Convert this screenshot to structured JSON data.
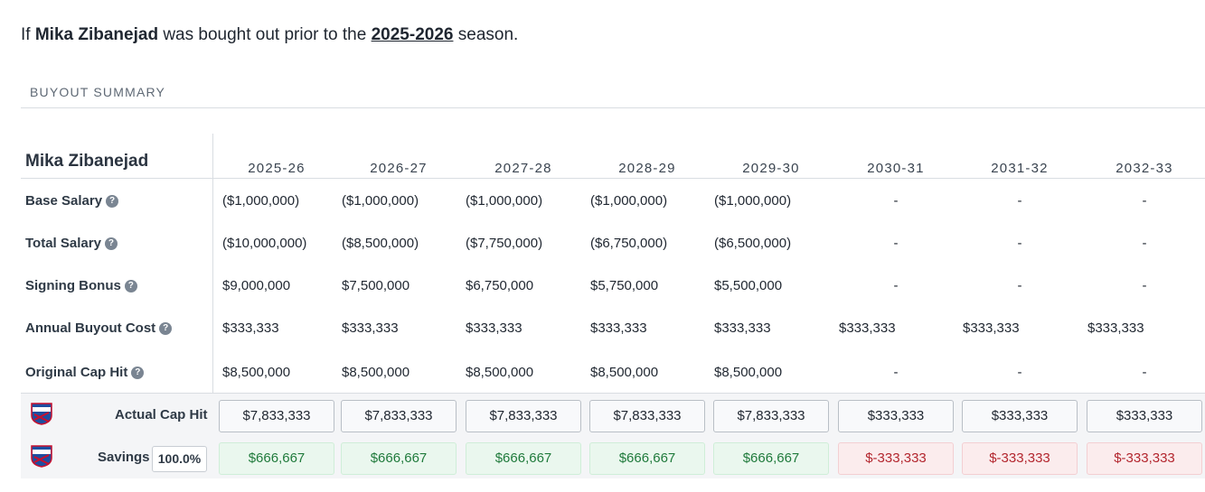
{
  "intro": {
    "prefix": "If",
    "player": "Mika Zibanejad",
    "middle": "was bought out prior to the",
    "season": "2025-2026",
    "suffix": "season."
  },
  "summary": {
    "title": "BUYOUT SUMMARY",
    "player_name": "Mika Zibanejad",
    "years": [
      "2025-26",
      "2026-27",
      "2027-28",
      "2028-29",
      "2029-30",
      "2030-31",
      "2031-32",
      "2032-33"
    ],
    "rows": [
      {
        "label": "Base Salary",
        "help_icon": "question-circle-icon",
        "values": [
          "($1,000,000)",
          "($1,000,000)",
          "($1,000,000)",
          "($1,000,000)",
          "($1,000,000)",
          "-",
          "-",
          "-"
        ]
      },
      {
        "label": "Total Salary",
        "help_icon": "question-circle-icon",
        "values": [
          "($10,000,000)",
          "($8,500,000)",
          "($7,750,000)",
          "($6,750,000)",
          "($6,500,000)",
          "-",
          "-",
          "-"
        ]
      },
      {
        "label": "Signing Bonus",
        "help_icon": "question-circle-icon",
        "values": [
          "$9,000,000",
          "$7,500,000",
          "$6,750,000",
          "$5,750,000",
          "$5,500,000",
          "-",
          "-",
          "-"
        ]
      },
      {
        "label": "Annual Buyout Cost",
        "help_icon": "question-circle-icon",
        "values": [
          "$333,333",
          "$333,333",
          "$333,333",
          "$333,333",
          "$333,333",
          "$333,333",
          "$333,333",
          "$333,333"
        ]
      },
      {
        "label": "Original Cap Hit",
        "help_icon": "question-circle-icon",
        "values": [
          "$8,500,000",
          "$8,500,000",
          "$8,500,000",
          "$8,500,000",
          "$8,500,000",
          "-",
          "-",
          "-"
        ]
      }
    ],
    "actual_cap_hit": {
      "label": "Actual Cap Hit",
      "team_logo": "new-york-rangers-logo",
      "values": [
        "$7,833,333",
        "$7,833,333",
        "$7,833,333",
        "$7,833,333",
        "$7,833,333",
        "$333,333",
        "$333,333",
        "$333,333"
      ]
    },
    "savings": {
      "label": "Savings",
      "percent": "100.0%",
      "team_logo": "new-york-rangers-logo",
      "values": [
        "$666,667",
        "$666,667",
        "$666,667",
        "$666,667",
        "$666,667",
        "$-333,333",
        "$-333,333",
        "$-333,333"
      ],
      "signs": [
        "positive",
        "positive",
        "positive",
        "positive",
        "positive",
        "negative",
        "negative",
        "negative"
      ]
    },
    "colors": {
      "positive_text": "#1f7a3b",
      "positive_bg": "#eaf7ee",
      "negative_text": "#b3262e",
      "negative_bg": "#fbeced"
    }
  }
}
